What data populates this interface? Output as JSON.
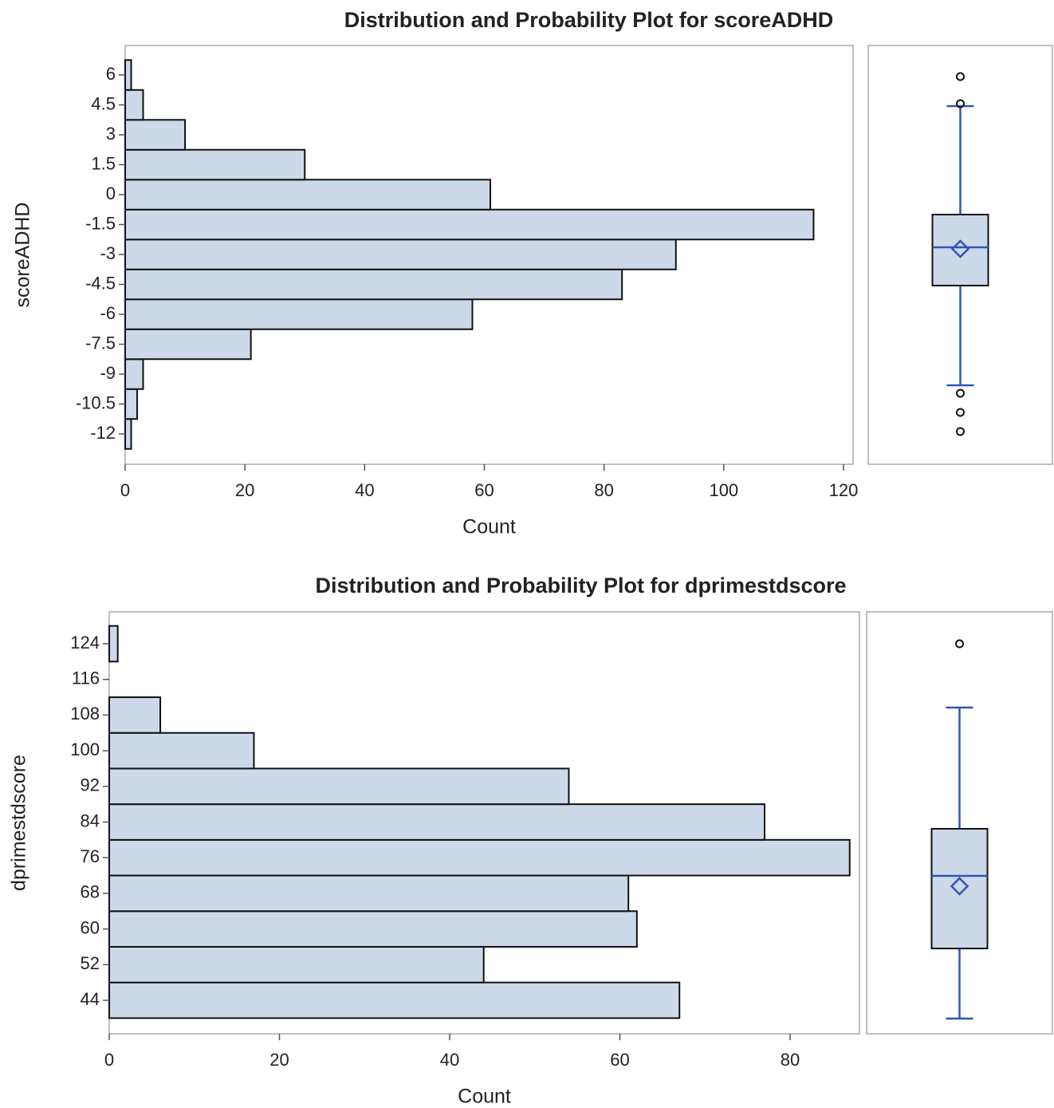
{
  "chart_data": [
    {
      "type": "histogram",
      "orientation": "horizontal",
      "title": "Distribution and Probability Plot for scoreADHD",
      "xlabel": "Count",
      "ylabel": "scoreADHD",
      "bins": [
        -12.75,
        -11.25,
        -9.75,
        -8.25,
        -6.75,
        -5.25,
        -3.75,
        -2.25,
        -0.75,
        0.75,
        2.25,
        3.75,
        5.25,
        6.75
      ],
      "values": [
        1,
        2,
        3,
        21,
        58,
        83,
        92,
        115,
        61,
        30,
        10,
        3,
        1
      ],
      "color": "#cdd8e8",
      "xlim": [
        0,
        121.6
      ],
      "xticks": [
        0,
        20,
        40,
        60,
        80,
        100,
        120
      ],
      "ylim": [
        -13.52,
        7.48
      ],
      "yticks": [
        -12,
        -10.5,
        -9,
        -7.5,
        -6,
        -4.5,
        -3,
        -1.5,
        0,
        1.5,
        3,
        4.5,
        6
      ],
      "box": {
        "min": -9.56,
        "q1": -4.56,
        "median": -2.64,
        "q3": -1.0,
        "max": 4.44,
        "mean": -2.72,
        "outliers": [
          5.92,
          4.56,
          -9.96,
          -10.92,
          -11.88
        ],
        "color": "#2f56b8"
      }
    },
    {
      "type": "histogram",
      "orientation": "horizontal",
      "title": "Distribution and Probability Plot for dprimestdscore",
      "xlabel": "Count",
      "ylabel": "dprimestdscore",
      "bins": [
        40,
        48,
        56,
        64,
        72,
        80,
        88,
        96,
        104,
        112,
        120,
        128
      ],
      "values": [
        67,
        44,
        62,
        61,
        87,
        77,
        54,
        17,
        6,
        0,
        1
      ],
      "color": "#cdd8e8",
      "xlim": [
        0,
        88.15
      ],
      "xticks": [
        0,
        20,
        40,
        60,
        80
      ],
      "ylim": [
        36.48,
        131.16
      ],
      "yticks": [
        44,
        52,
        60,
        68,
        76,
        84,
        92,
        100,
        108,
        116,
        124
      ],
      "box": {
        "min": 39.9,
        "q1": 55.63,
        "median": 71.92,
        "q3": 82.48,
        "max": 109.68,
        "mean": 69.6,
        "outliers": [
          124
        ],
        "color": "#2f56b8"
      }
    }
  ]
}
